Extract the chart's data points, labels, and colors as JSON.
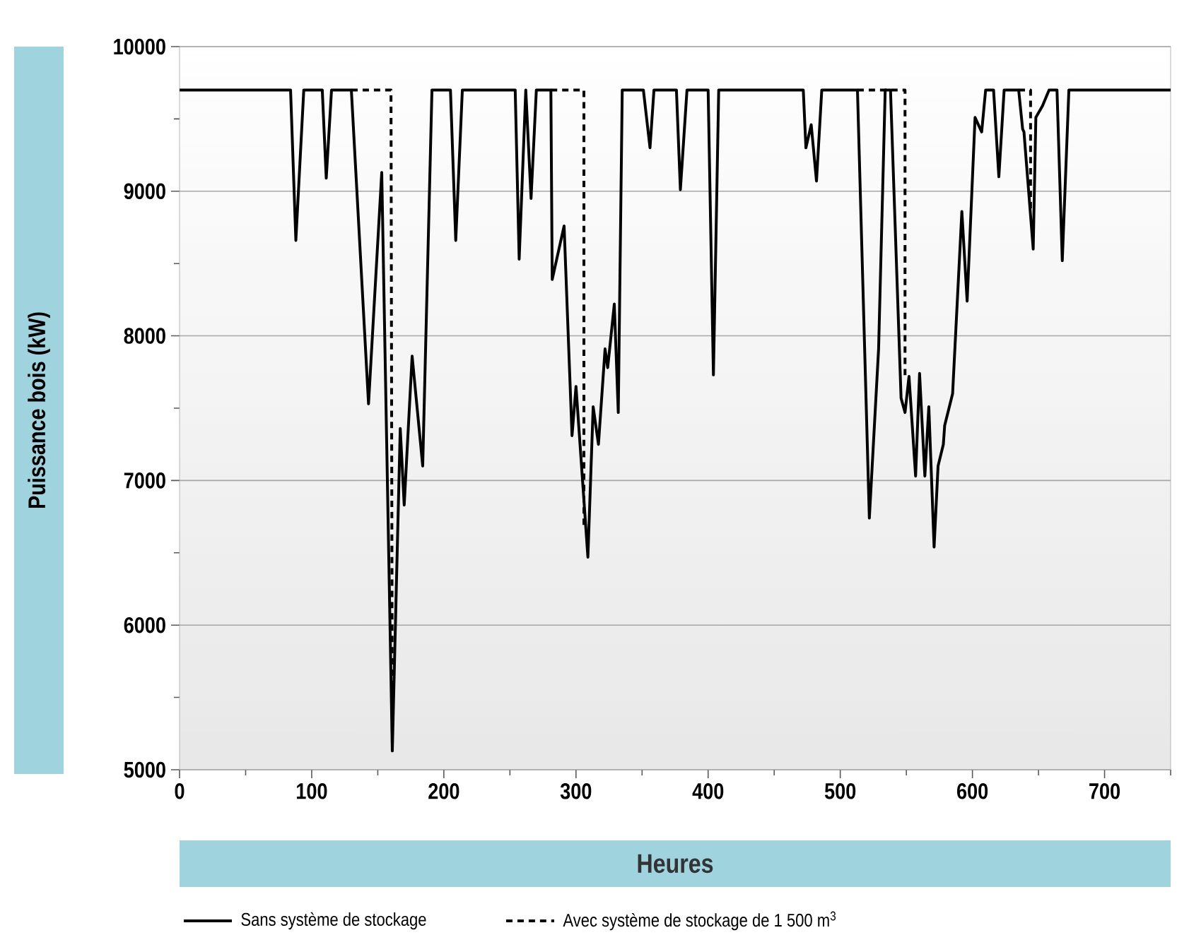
{
  "chart_data": {
    "type": "line",
    "xlabel": "Heures",
    "ylabel": "Puissance bois (kW)",
    "xlim": [
      0,
      750
    ],
    "ylim": [
      5000,
      10000
    ],
    "xticks": [
      0,
      {
        "value": 50,
        "label": null
      },
      100,
      {
        "value": 150,
        "label": null
      },
      200,
      {
        "value": 250,
        "label": null
      },
      300,
      {
        "value": 350,
        "label": null
      },
      400,
      {
        "value": 450,
        "label": null
      },
      500,
      {
        "value": 550,
        "label": null
      },
      600,
      {
        "value": 650,
        "label": null
      },
      700,
      {
        "value": 750,
        "label": null
      }
    ],
    "yticks": [
      5000,
      {
        "value": 5500,
        "label": null
      },
      6000,
      {
        "value": 6500,
        "label": null
      },
      7000,
      {
        "value": 7500,
        "label": null
      },
      8000,
      {
        "value": 8500,
        "label": null
      },
      9000,
      {
        "value": 9500,
        "label": null
      },
      10000
    ],
    "grid": "y",
    "legend": "bottom",
    "marker": "none",
    "series": [
      {
        "name": "Sans système de stockage",
        "color": "#000000",
        "line_style": "solid",
        "x": [
          0,
          84,
          88,
          94,
          108,
          111,
          115,
          130,
          143,
          153,
          161,
          167,
          170,
          176,
          184,
          191,
          205,
          209,
          214,
          254,
          257,
          262,
          266,
          270,
          281,
          282,
          291,
          297,
          300,
          309,
          313,
          317,
          322,
          324,
          329,
          332,
          335,
          351,
          356,
          359,
          376,
          379,
          384,
          400,
          404,
          408,
          472,
          474,
          478,
          482,
          486,
          513,
          522,
          529,
          534,
          538,
          546,
          549,
          552,
          557,
          560,
          564,
          567,
          571,
          574,
          578,
          579,
          585,
          592,
          596,
          602,
          607,
          610,
          616,
          620,
          624,
          635,
          638,
          639,
          646,
          648,
          653,
          658,
          664,
          668,
          673,
          750
        ],
        "values": [
          9700,
          9700,
          8660,
          9700,
          9700,
          9090,
          9700,
          9700,
          7530,
          9130,
          5130,
          7360,
          6830,
          7860,
          7100,
          9700,
          9700,
          8660,
          9700,
          9700,
          8530,
          9700,
          8950,
          9700,
          9700,
          8390,
          8760,
          7310,
          7650,
          6470,
          7510,
          7250,
          7910,
          7780,
          8220,
          7470,
          9700,
          9700,
          9300,
          9700,
          9700,
          9010,
          9700,
          9700,
          7730,
          9700,
          9700,
          9300,
          9460,
          9070,
          9700,
          9700,
          6740,
          7910,
          9700,
          9700,
          7570,
          7470,
          7720,
          7030,
          7740,
          7030,
          7510,
          6540,
          7100,
          7250,
          7380,
          7600,
          8860,
          8240,
          9510,
          9410,
          9700,
          9700,
          9100,
          9700,
          9700,
          9430,
          9410,
          8600,
          9510,
          9590,
          9700,
          9700,
          8520,
          9700,
          9700
        ]
      },
      {
        "name": "Avec système de stockage de 1 500 m$^{3}$",
        "color": "#000000",
        "line_style": "dashed",
        "x": [
          130,
          160,
          161,
          null,
          281,
          306,
          306,
          null,
          513,
          549,
          549,
          null,
          635,
          644,
          644
        ],
        "values": [
          9700,
          9700,
          5130,
          null,
          9700,
          9700,
          6690,
          null,
          9700,
          9700,
          7720,
          null,
          9700,
          9700,
          8870
        ]
      }
    ]
  }
}
